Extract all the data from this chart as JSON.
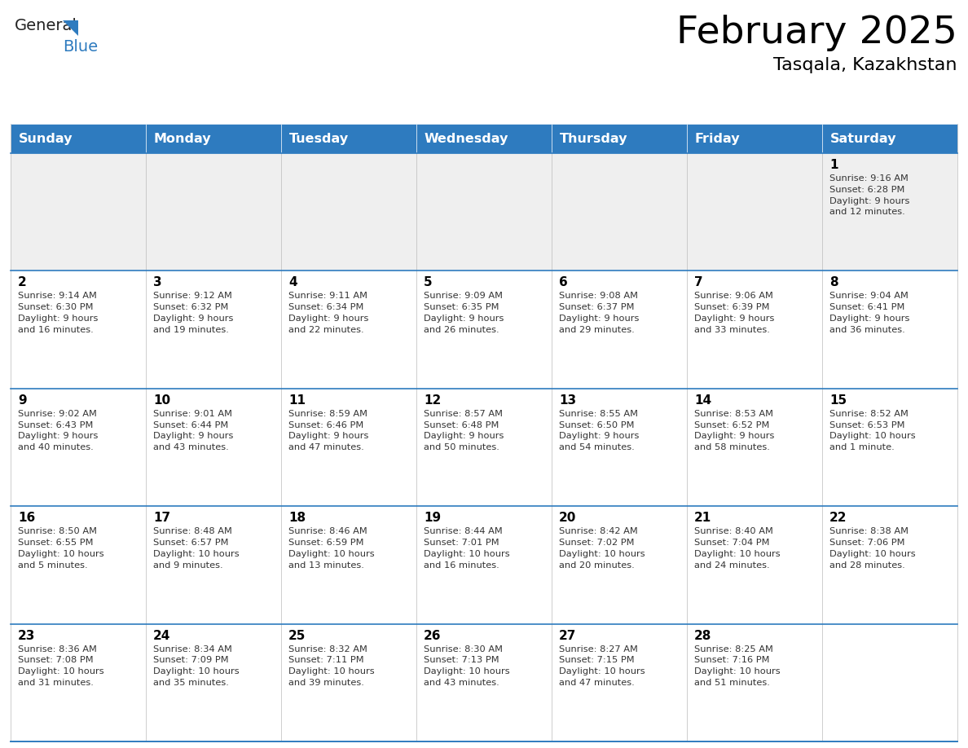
{
  "title": "February 2025",
  "subtitle": "Tasqala, Kazakhstan",
  "header_color": "#2E7BBF",
  "header_text_color": "#FFFFFF",
  "week0_bg": "#EFEFEF",
  "cell_bg": "#FFFFFF",
  "day_headers": [
    "Sunday",
    "Monday",
    "Tuesday",
    "Wednesday",
    "Thursday",
    "Friday",
    "Saturday"
  ],
  "title_fontsize": 34,
  "subtitle_fontsize": 16,
  "header_fontsize": 11.5,
  "day_num_fontsize": 11,
  "cell_fontsize": 8.2,
  "weeks": [
    [
      {
        "day": null,
        "sunrise": null,
        "sunset": null,
        "daylight": null
      },
      {
        "day": null,
        "sunrise": null,
        "sunset": null,
        "daylight": null
      },
      {
        "day": null,
        "sunrise": null,
        "sunset": null,
        "daylight": null
      },
      {
        "day": null,
        "sunrise": null,
        "sunset": null,
        "daylight": null
      },
      {
        "day": null,
        "sunrise": null,
        "sunset": null,
        "daylight": null
      },
      {
        "day": null,
        "sunrise": null,
        "sunset": null,
        "daylight": null
      },
      {
        "day": 1,
        "sunrise": "9:16 AM",
        "sunset": "6:28 PM",
        "daylight": "9 hours and 12 minutes."
      }
    ],
    [
      {
        "day": 2,
        "sunrise": "9:14 AM",
        "sunset": "6:30 PM",
        "daylight": "9 hours and 16 minutes."
      },
      {
        "day": 3,
        "sunrise": "9:12 AM",
        "sunset": "6:32 PM",
        "daylight": "9 hours and 19 minutes."
      },
      {
        "day": 4,
        "sunrise": "9:11 AM",
        "sunset": "6:34 PM",
        "daylight": "9 hours and 22 minutes."
      },
      {
        "day": 5,
        "sunrise": "9:09 AM",
        "sunset": "6:35 PM",
        "daylight": "9 hours and 26 minutes."
      },
      {
        "day": 6,
        "sunrise": "9:08 AM",
        "sunset": "6:37 PM",
        "daylight": "9 hours and 29 minutes."
      },
      {
        "day": 7,
        "sunrise": "9:06 AM",
        "sunset": "6:39 PM",
        "daylight": "9 hours and 33 minutes."
      },
      {
        "day": 8,
        "sunrise": "9:04 AM",
        "sunset": "6:41 PM",
        "daylight": "9 hours and 36 minutes."
      }
    ],
    [
      {
        "day": 9,
        "sunrise": "9:02 AM",
        "sunset": "6:43 PM",
        "daylight": "9 hours and 40 minutes."
      },
      {
        "day": 10,
        "sunrise": "9:01 AM",
        "sunset": "6:44 PM",
        "daylight": "9 hours and 43 minutes."
      },
      {
        "day": 11,
        "sunrise": "8:59 AM",
        "sunset": "6:46 PM",
        "daylight": "9 hours and 47 minutes."
      },
      {
        "day": 12,
        "sunrise": "8:57 AM",
        "sunset": "6:48 PM",
        "daylight": "9 hours and 50 minutes."
      },
      {
        "day": 13,
        "sunrise": "8:55 AM",
        "sunset": "6:50 PM",
        "daylight": "9 hours and 54 minutes."
      },
      {
        "day": 14,
        "sunrise": "8:53 AM",
        "sunset": "6:52 PM",
        "daylight": "9 hours and 58 minutes."
      },
      {
        "day": 15,
        "sunrise": "8:52 AM",
        "sunset": "6:53 PM",
        "daylight": "10 hours and 1 minute."
      }
    ],
    [
      {
        "day": 16,
        "sunrise": "8:50 AM",
        "sunset": "6:55 PM",
        "daylight": "10 hours and 5 minutes."
      },
      {
        "day": 17,
        "sunrise": "8:48 AM",
        "sunset": "6:57 PM",
        "daylight": "10 hours and 9 minutes."
      },
      {
        "day": 18,
        "sunrise": "8:46 AM",
        "sunset": "6:59 PM",
        "daylight": "10 hours and 13 minutes."
      },
      {
        "day": 19,
        "sunrise": "8:44 AM",
        "sunset": "7:01 PM",
        "daylight": "10 hours and 16 minutes."
      },
      {
        "day": 20,
        "sunrise": "8:42 AM",
        "sunset": "7:02 PM",
        "daylight": "10 hours and 20 minutes."
      },
      {
        "day": 21,
        "sunrise": "8:40 AM",
        "sunset": "7:04 PM",
        "daylight": "10 hours and 24 minutes."
      },
      {
        "day": 22,
        "sunrise": "8:38 AM",
        "sunset": "7:06 PM",
        "daylight": "10 hours and 28 minutes."
      }
    ],
    [
      {
        "day": 23,
        "sunrise": "8:36 AM",
        "sunset": "7:08 PM",
        "daylight": "10 hours and 31 minutes."
      },
      {
        "day": 24,
        "sunrise": "8:34 AM",
        "sunset": "7:09 PM",
        "daylight": "10 hours and 35 minutes."
      },
      {
        "day": 25,
        "sunrise": "8:32 AM",
        "sunset": "7:11 PM",
        "daylight": "10 hours and 39 minutes."
      },
      {
        "day": 26,
        "sunrise": "8:30 AM",
        "sunset": "7:13 PM",
        "daylight": "10 hours and 43 minutes."
      },
      {
        "day": 27,
        "sunrise": "8:27 AM",
        "sunset": "7:15 PM",
        "daylight": "10 hours and 47 minutes."
      },
      {
        "day": 28,
        "sunrise": "8:25 AM",
        "sunset": "7:16 PM",
        "daylight": "10 hours and 51 minutes."
      },
      {
        "day": null,
        "sunrise": null,
        "sunset": null,
        "daylight": null
      }
    ]
  ],
  "logo_color_general": "#222222",
  "logo_color_blue": "#2E7BBF",
  "logo_color_triangle": "#2E7BBF",
  "border_color": "#2E7BBF",
  "separator_color": "#BBBBBB",
  "text_color": "#333333"
}
